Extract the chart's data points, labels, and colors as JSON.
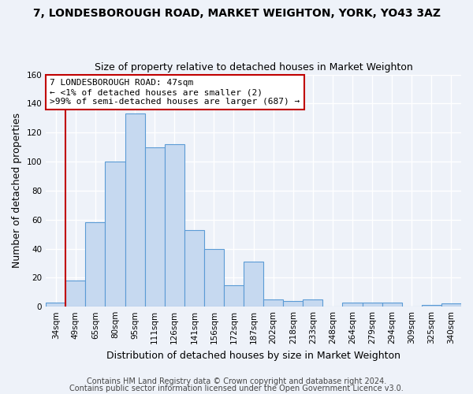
{
  "title": "7, LONDESBOROUGH ROAD, MARKET WEIGHTON, YORK, YO43 3AZ",
  "subtitle": "Size of property relative to detached houses in Market Weighton",
  "xlabel": "Distribution of detached houses by size in Market Weighton",
  "ylabel": "Number of detached properties",
  "bar_labels": [
    "34sqm",
    "49sqm",
    "65sqm",
    "80sqm",
    "95sqm",
    "111sqm",
    "126sqm",
    "141sqm",
    "156sqm",
    "172sqm",
    "187sqm",
    "202sqm",
    "218sqm",
    "233sqm",
    "248sqm",
    "264sqm",
    "279sqm",
    "294sqm",
    "309sqm",
    "325sqm",
    "340sqm"
  ],
  "bar_heights": [
    3,
    18,
    58,
    100,
    133,
    110,
    112,
    53,
    40,
    15,
    31,
    5,
    4,
    5,
    0,
    3,
    3,
    3,
    0,
    1,
    2
  ],
  "bar_color": "#c6d9f0",
  "bar_edge_color": "#5b9bd5",
  "highlight_color": "#c00000",
  "ylim": [
    0,
    160
  ],
  "yticks": [
    0,
    20,
    40,
    60,
    80,
    100,
    120,
    140,
    160
  ],
  "annotation_line1": "7 LONDESBOROUGH ROAD: 47sqm",
  "annotation_line2": "← <1% of detached houses are smaller (2)",
  "annotation_line3": ">99% of semi-detached houses are larger (687) →",
  "footer1": "Contains HM Land Registry data © Crown copyright and database right 2024.",
  "footer2": "Contains public sector information licensed under the Open Government Licence v3.0.",
  "bg_color": "#eef2f9",
  "grid_color": "#ffffff",
  "title_fontsize": 10,
  "subtitle_fontsize": 9,
  "axis_label_fontsize": 9,
  "tick_fontsize": 7.5,
  "annotation_fontsize": 8,
  "footer_fontsize": 7
}
